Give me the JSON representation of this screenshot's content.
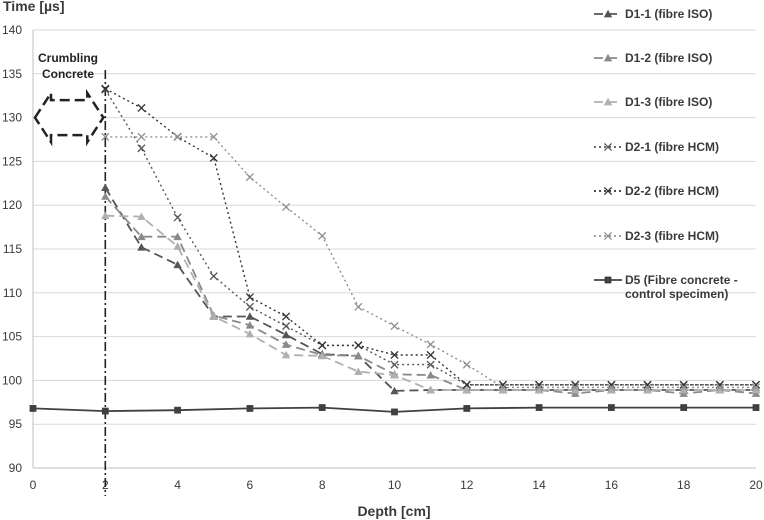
{
  "chart_data": {
    "type": "line",
    "xlabel": "Depth [cm]",
    "ylabel": "Time [µs]",
    "xlim": [
      0,
      20
    ],
    "ylim": [
      90,
      140
    ],
    "xticks": [
      0,
      2,
      4,
      6,
      8,
      10,
      12,
      14,
      16,
      18,
      20
    ],
    "yticks": [
      90,
      95,
      100,
      105,
      110,
      115,
      120,
      125,
      130,
      135,
      140
    ],
    "grid": "horizontal",
    "legend_position": "right",
    "annotation": {
      "text_line1": "Crumbling",
      "text_line2": "Concrete",
      "boundary_x": 2,
      "arrow_y_range": [
        128,
        132
      ]
    },
    "series": [
      {
        "name": "D1-1 (fibre ISO)",
        "color": "#555555",
        "dash": "9,5",
        "marker": "triangle",
        "x": [
          2,
          3,
          4,
          5,
          6,
          7,
          8,
          9,
          10,
          11,
          12,
          13,
          14,
          15,
          16,
          17,
          18,
          19,
          20
        ],
        "y": [
          122,
          115.2,
          113.2,
          107.3,
          107.3,
          105.2,
          103,
          102.8,
          98.8,
          98.9,
          98.9,
          98.9,
          98.9,
          98.9,
          98.9,
          98.9,
          98.9,
          98.9,
          98.9
        ]
      },
      {
        "name": "D1-2 (fibre ISO)",
        "color": "#8a8a8a",
        "dash": "9,5",
        "marker": "triangle",
        "x": [
          2,
          3,
          4,
          5,
          6,
          7,
          8,
          9,
          10,
          11,
          12,
          13,
          14,
          15,
          16,
          17,
          18,
          19,
          20
        ],
        "y": [
          121,
          116.4,
          116.4,
          107.4,
          106.3,
          104.1,
          102.9,
          102.8,
          100.7,
          100.6,
          98.9,
          98.9,
          98.9,
          98.5,
          98.9,
          98.9,
          98.5,
          98.9,
          98.5
        ]
      },
      {
        "name": "D1-3 (fibre ISO)",
        "color": "#b0b0b0",
        "dash": "9,5",
        "marker": "triangle",
        "x": [
          2,
          3,
          4,
          5,
          6,
          7,
          8,
          9,
          10,
          11,
          12,
          13,
          14,
          15,
          16,
          17,
          18,
          19,
          20
        ],
        "y": [
          118.8,
          118.7,
          115.3,
          107.3,
          105.3,
          102.9,
          102.8,
          101,
          100.6,
          98.9,
          98.9,
          98.9,
          98.9,
          98.9,
          98.9,
          98.9,
          98.9,
          98.9,
          98.9
        ]
      },
      {
        "name": "D2-1 (fibre HCM)",
        "color": "#555555",
        "dash": "2,3",
        "marker": "x",
        "x": [
          2,
          3,
          4,
          5,
          6,
          7,
          8,
          9,
          10,
          11,
          12,
          13,
          14,
          15,
          16,
          17,
          18,
          19,
          20
        ],
        "y": [
          133.2,
          126.5,
          118.6,
          111.9,
          108.4,
          106.2,
          104,
          104,
          101.8,
          101.8,
          99.5,
          99.5,
          99.5,
          99.5,
          99.5,
          99.5,
          99.5,
          99.5,
          99.5
        ]
      },
      {
        "name": "D2-2 (fibre HCM)",
        "color": "#333333",
        "dash": "2,3",
        "marker": "x",
        "x": [
          2,
          3,
          4,
          5,
          6,
          7,
          8,
          9,
          10,
          11,
          12,
          13,
          14,
          15,
          16,
          17,
          18,
          19,
          20
        ],
        "y": [
          133.3,
          131.1,
          127.8,
          125.4,
          109.5,
          107.3,
          104,
          104,
          102.9,
          102.9,
          99.5,
          99.5,
          99.5,
          99.5,
          99.5,
          99.5,
          99.5,
          99.5,
          99.5
        ]
      },
      {
        "name": "D2-3 (fibre HCM)",
        "color": "#909090",
        "dash": "2,3",
        "marker": "x",
        "x": [
          2,
          3,
          4,
          5,
          6,
          7,
          8,
          9,
          10,
          11,
          12,
          13,
          14,
          15,
          16,
          17,
          18,
          19,
          20
        ],
        "y": [
          127.8,
          127.8,
          127.8,
          127.8,
          123.2,
          119.8,
          116.5,
          108.4,
          106.2,
          104.1,
          101.8,
          99.2,
          99.2,
          99.2,
          99.2,
          99.2,
          99.2,
          99.2,
          99.2
        ]
      },
      {
        "name": "D5 (Fibre concrete - control specimen)",
        "color": "#404040",
        "dash": "",
        "marker": "square",
        "x": [
          0,
          2,
          4,
          6,
          8,
          10,
          12,
          14,
          16,
          18,
          20
        ],
        "y": [
          96.8,
          96.5,
          96.6,
          96.8,
          96.9,
          96.4,
          96.8,
          96.9,
          96.9,
          96.9,
          96.9
        ]
      }
    ]
  },
  "legend_labels": [
    [
      "D1-1 (fibre ISO)"
    ],
    [
      "D1-2 (fibre ISO)"
    ],
    [
      "D1-3 (fibre ISO)"
    ],
    [
      "D2-1 (fibre HCM)"
    ],
    [
      "D2-2 (fibre HCM)"
    ],
    [
      "D2-3 (fibre HCM)"
    ],
    [
      "D5 (Fibre concrete -",
      "control specimen)"
    ]
  ]
}
